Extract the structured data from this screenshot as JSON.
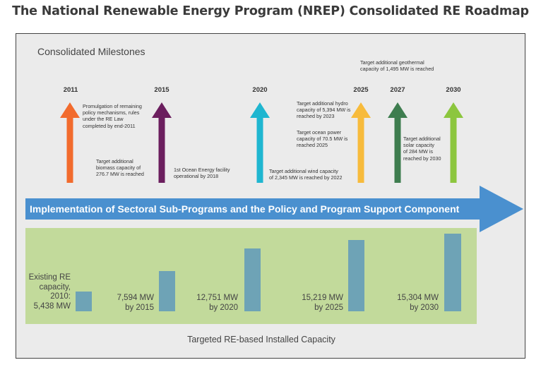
{
  "title": "The National Renewable Energy Program (NREP) Consolidated RE Roadmap",
  "milestones": {
    "heading": "Consolidated Milestones",
    "years": [
      "2011",
      "2015",
      "2020",
      "2025",
      "2027",
      "2030"
    ],
    "arrow_colors": [
      "#f26b2d",
      "#6b1e5e",
      "#1fb6d0",
      "#f7bb3c",
      "#3e7d4f",
      "#8cc63e"
    ],
    "notes": {
      "n2011_top": [
        "Promulgation of remaining",
        "policy mechanisms, rules",
        "under the RE Law",
        "completed by end-2011"
      ],
      "n2011_bottom": [
        "Target additional",
        "biomass capacity of",
        "276.7 MW is reached"
      ],
      "n2015": [
        "1st Ocean Energy facility",
        "operational by 2018"
      ],
      "n2020": [
        "Target additional wind capacity",
        "of 2,345 MW is reached by 2022"
      ],
      "n2025_hydro": [
        "Target additional hydro",
        "capacity of 5,394 MW is",
        "reached by 2023"
      ],
      "n2025_ocean": [
        "Target ocean power",
        "capacity of 70.5 MW is",
        "reached 2025"
      ],
      "n_geothermal": [
        "Target additional geothermal",
        "capacity of 1,495 MW is reached"
      ],
      "n2027_solar": [
        "Target additional",
        "solar capacity",
        "of 284 MW is",
        "reached by 2030"
      ]
    }
  },
  "banner": {
    "text": "Implementation of Sectoral Sub-Programs and the Policy and Program Support Component",
    "color": "#4a90cf"
  },
  "capacity": {
    "box_color": "#c2da9b",
    "bar_color": "#6ea3b6",
    "footer": "Targeted RE-based Installed Capacity",
    "bars": [
      {
        "label": [
          "Existing RE",
          "capacity,",
          "2010:",
          "5,438 MW"
        ],
        "value": 5438
      },
      {
        "label": [
          "7,594 MW",
          "by 2015"
        ],
        "value": 7594
      },
      {
        "label": [
          "12,751 MW",
          "by 2020"
        ],
        "value": 12751
      },
      {
        "label": [
          "15,219 MW",
          "by 2025"
        ],
        "value": 15219
      },
      {
        "label": [
          "15,304 MW",
          "by 2030"
        ],
        "value": 15304
      }
    ]
  }
}
